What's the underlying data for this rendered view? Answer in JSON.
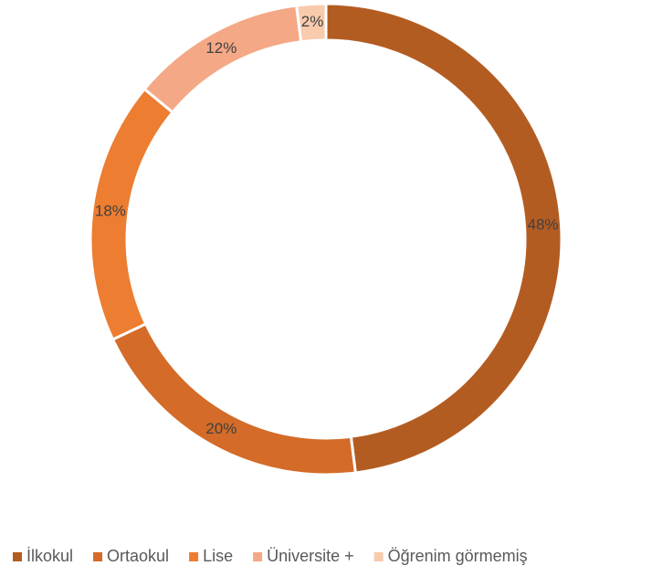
{
  "chart_data": {
    "type": "pie",
    "categories": [
      "İlkokul",
      "Ortaokul",
      "Lise",
      "Üniversite +",
      "Öğrenim görmemiş"
    ],
    "values": [
      48,
      20,
      18,
      12,
      2
    ],
    "value_labels": [
      "48%",
      "20%",
      "18%",
      "12%",
      "2%"
    ],
    "colors": [
      "#b35c22",
      "#d46b28",
      "#ed7d31",
      "#f4a886",
      "#f8cbad"
    ],
    "legend": "bottom"
  }
}
